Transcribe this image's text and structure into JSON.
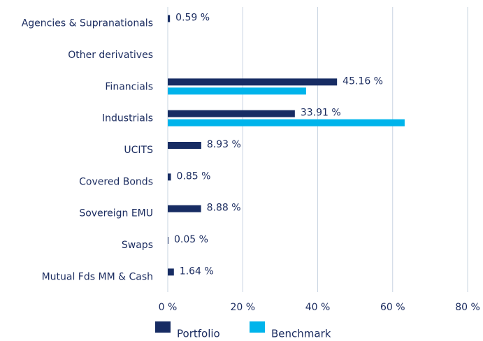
{
  "chart_data": {
    "type": "hbar",
    "categories": [
      "Agencies & Supranationals",
      "Other derivatives",
      "Financials",
      "Industrials",
      "UCITS",
      "Covered Bonds",
      "Sovereign EMU",
      "Swaps",
      "Mutual Fds MM & Cash"
    ],
    "series": [
      {
        "name": "Portfolio",
        "color": "#172c63",
        "values": [
          0.59,
          null,
          45.16,
          33.91,
          8.93,
          0.85,
          8.88,
          0.05,
          1.64
        ],
        "value_labels": [
          "0.59 %",
          null,
          "45.16 %",
          "33.91 %",
          "8.93 %",
          "0.85 %",
          "8.88 %",
          "0.05 %",
          "1.64 %"
        ]
      },
      {
        "name": "Benchmark",
        "color": "#00b4eb",
        "values": [
          null,
          null,
          36.9,
          63.2,
          null,
          null,
          null,
          null,
          null
        ]
      }
    ],
    "xlim": [
      0,
      80
    ],
    "xticks": [
      {
        "value": 0,
        "label": "0 %"
      },
      {
        "value": 20,
        "label": "20 %"
      },
      {
        "value": 40,
        "label": "40 %"
      },
      {
        "value": 60,
        "label": "60 %"
      },
      {
        "value": 80,
        "label": "80 %"
      }
    ],
    "grid": true
  }
}
